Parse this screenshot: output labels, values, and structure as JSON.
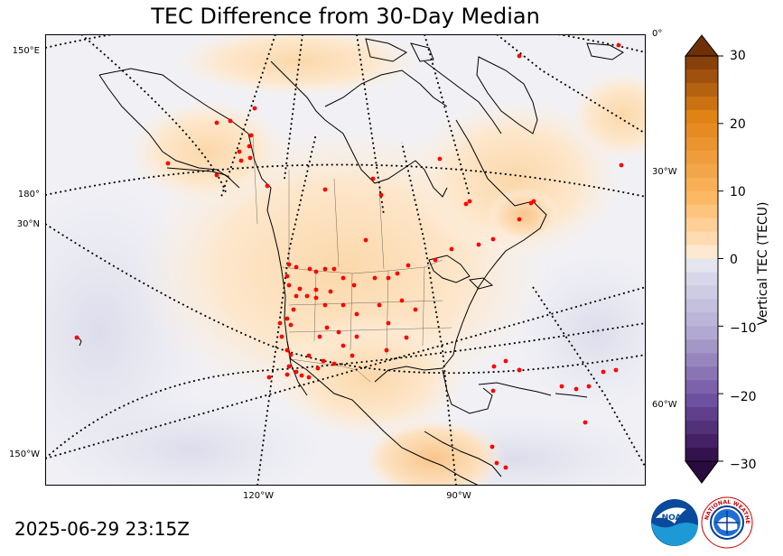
{
  "map": {
    "title": "TEC Difference from 30-Day Median",
    "projection": "conic",
    "region": "North America",
    "left_labels": [
      "150°E",
      "180°",
      "30°N",
      "150°W"
    ],
    "right_labels": [
      "0°",
      "30°W",
      "60°W"
    ],
    "bottom_labels": [
      "120°W",
      "90°W"
    ],
    "station_color": "#ff0000",
    "coastline_color": "#000000"
  },
  "colorbar": {
    "label": "Vertical TEC (TECU)",
    "min": -30,
    "max": 30,
    "ticks": [
      "30",
      "20",
      "10",
      "0",
      "−10",
      "−20",
      "−30"
    ],
    "negative_color": "#3d0f4f",
    "neutral_color": "#f7f7f7",
    "positive_color": "#7a3a0a"
  },
  "footer": {
    "timestamp": "2025-06-29 23:15Z",
    "logos": [
      "NOAA",
      "NATIONAL WEATHER SERVICE"
    ]
  }
}
